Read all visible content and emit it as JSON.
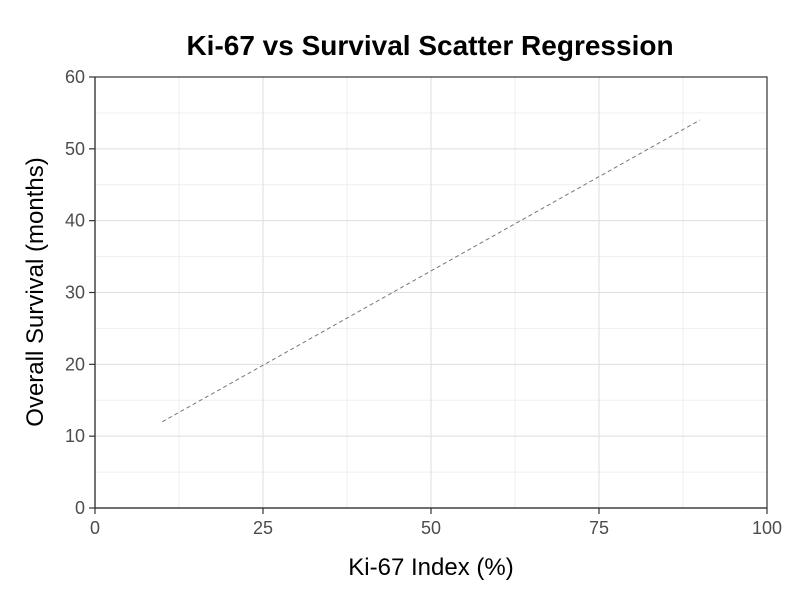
{
  "chart_data": {
    "type": "scatter",
    "title": "Ki-67 vs Survival Scatter Regression",
    "xlabel": "Ki-67 Index (%)",
    "ylabel": "Overall Survival (months)",
    "xlim": [
      0,
      100
    ],
    "ylim": [
      0,
      60
    ],
    "x_ticks": [
      0,
      25,
      50,
      75,
      100
    ],
    "y_ticks": [
      0,
      10,
      20,
      30,
      40,
      50,
      60
    ],
    "x_tick_labels": [
      "0",
      "25",
      "50",
      "75",
      "100"
    ],
    "y_tick_labels": [
      "0",
      "10",
      "20",
      "30",
      "40",
      "50",
      "60"
    ],
    "grid": true,
    "points": [],
    "regression_line": {
      "x": [
        10,
        90
      ],
      "y": [
        12,
        54
      ],
      "style": "dashed",
      "color": "#777777"
    }
  }
}
